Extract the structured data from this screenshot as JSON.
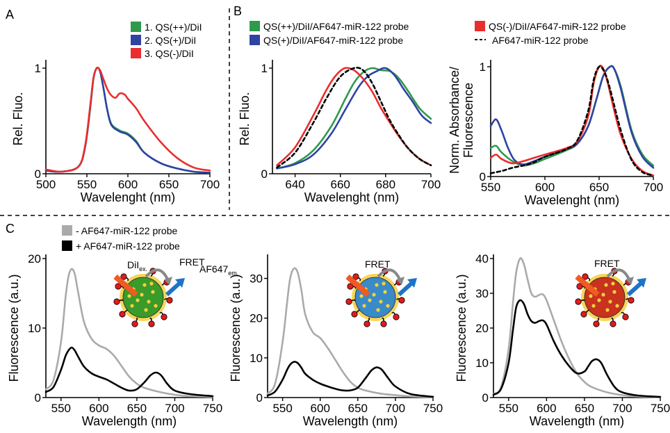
{
  "panel_labels": {
    "a": "A",
    "b": "B",
    "c": "C"
  },
  "colors": {
    "green": "#2e9a4c",
    "blue": "#2f43a3",
    "red": "#ea2d2d",
    "gray": "#aaaaaa",
    "black": "#000000",
    "arrow_orange": "#f05a23",
    "arrow_blue": "#1e73c8",
    "nanoparticle_green": "#3a9a2a",
    "nanoparticle_blue": "#3a8ac8",
    "nanoparticle_red": "#c8321e",
    "dye_red": "#e01b1b",
    "dye_yellow": "#f2d23c"
  },
  "legend_a": [
    {
      "label": "1. QS(++)/DiI",
      "color": "#2e9a4c"
    },
    {
      "label": "2. QS(+)/DiI",
      "color": "#2f43a3"
    },
    {
      "label": "3. QS(-)/DiI",
      "color": "#ea2d2d"
    }
  ],
  "legend_b": [
    {
      "label": "QS(++)/DiI/AF647-miR-122 probe",
      "color": "#2e9a4c",
      "style": "box"
    },
    {
      "label": "QS(+)/DiI/AF647-miR-122 probe",
      "color": "#2f43a3",
      "style": "box"
    },
    {
      "label": "QS(-)/DiI/AF647-miR-122 probe",
      "color": "#ea2d2d",
      "style": "box"
    },
    {
      "label": "AF647-miR-122 probe",
      "color": "#000000",
      "style": "dash"
    }
  ],
  "legend_c": [
    {
      "label": "- AF647-miR-122 probe",
      "color": "#aaaaaa"
    },
    {
      "label": "+ AF647-miR-122 probe",
      "color": "#000000"
    }
  ],
  "insets": {
    "dii_label": "DiI",
    "dii_sub": "ex.",
    "fret_label": "FRET",
    "af_label": "AF647",
    "af_sub": "em."
  },
  "chart_data": [
    {
      "id": "A",
      "type": "line",
      "xlabel": "Wavelenght (nm)",
      "ylabel": "Rel. Fluo.",
      "xlim": [
        500,
        700
      ],
      "ylim": [
        0,
        1
      ],
      "xticks": [
        "500",
        "550",
        "600",
        "650",
        "700"
      ],
      "yticks": [
        "0",
        "1"
      ],
      "series": [
        {
          "name": "1. QS(++)/DiI",
          "color": "#2e9a4c",
          "x": [
            500,
            520,
            540,
            548,
            554,
            558,
            562,
            566,
            570,
            575,
            580,
            590,
            600,
            610,
            620,
            640,
            660,
            680,
            700
          ],
          "y": [
            0.03,
            0.02,
            0.07,
            0.26,
            0.62,
            0.9,
            1.0,
            0.97,
            0.82,
            0.6,
            0.47,
            0.41,
            0.38,
            0.31,
            0.2,
            0.1,
            0.05,
            0.02,
            0.01
          ]
        },
        {
          "name": "2. QS(+)/DiI",
          "color": "#2f43a3",
          "x": [
            500,
            520,
            540,
            548,
            554,
            558,
            562,
            566,
            570,
            575,
            580,
            590,
            600,
            610,
            620,
            640,
            660,
            680,
            700
          ],
          "y": [
            0.03,
            0.02,
            0.07,
            0.26,
            0.62,
            0.9,
            1.0,
            0.97,
            0.82,
            0.6,
            0.46,
            0.4,
            0.37,
            0.3,
            0.2,
            0.1,
            0.05,
            0.02,
            0.01
          ]
        },
        {
          "name": "3. QS(-)/DiI",
          "color": "#ea2d2d",
          "x": [
            500,
            520,
            540,
            548,
            554,
            558,
            562,
            566,
            570,
            575,
            580,
            585,
            590,
            596,
            600,
            610,
            620,
            640,
            660,
            680,
            700
          ],
          "y": [
            0.04,
            0.02,
            0.07,
            0.27,
            0.64,
            0.9,
            1.0,
            0.98,
            0.9,
            0.8,
            0.74,
            0.72,
            0.76,
            0.75,
            0.71,
            0.62,
            0.5,
            0.3,
            0.15,
            0.06,
            0.03
          ]
        }
      ]
    },
    {
      "id": "B1",
      "type": "line",
      "xlabel": "Wavelenght (nm)",
      "ylabel": "Rel. Fluo.",
      "xlim": [
        630,
        700
      ],
      "ylim": [
        0,
        1
      ],
      "xticks": [
        "640",
        "660",
        "680",
        "700"
      ],
      "yticks": [
        "0",
        "1"
      ],
      "series": [
        {
          "name": "QS(++)/DiI/AF647-miR-122 probe",
          "color": "#2e9a4c",
          "dash": false,
          "x": [
            632,
            640,
            648,
            656,
            662,
            666,
            670,
            674,
            678,
            682,
            686,
            690,
            695,
            700
          ],
          "y": [
            0.05,
            0.1,
            0.22,
            0.45,
            0.7,
            0.86,
            0.96,
            1.0,
            0.98,
            0.97,
            0.9,
            0.78,
            0.62,
            0.52
          ]
        },
        {
          "name": "QS(+)/DiI/AF647-miR-122 probe",
          "color": "#2f43a3",
          "dash": false,
          "x": [
            632,
            640,
            648,
            656,
            662,
            668,
            672,
            676,
            680,
            684,
            688,
            692,
            696,
            700
          ],
          "y": [
            0.05,
            0.09,
            0.18,
            0.38,
            0.6,
            0.82,
            0.92,
            0.97,
            1.0,
            0.93,
            0.8,
            0.68,
            0.55,
            0.48
          ]
        },
        {
          "name": "QS(-)/DiI/AF647-miR-122 probe",
          "color": "#ea2d2d",
          "dash": false,
          "x": [
            632,
            640,
            648,
            654,
            658,
            662,
            666,
            670,
            674,
            678,
            682,
            686,
            690,
            695,
            700
          ],
          "y": [
            0.08,
            0.25,
            0.55,
            0.8,
            0.93,
            1.0,
            0.98,
            0.9,
            0.78,
            0.62,
            0.48,
            0.35,
            0.24,
            0.14,
            0.08
          ]
        },
        {
          "name": "AF647-miR-122 probe",
          "color": "#000000",
          "dash": true,
          "x": [
            632,
            640,
            648,
            654,
            660,
            666,
            670,
            674,
            678,
            682,
            686,
            690,
            695,
            700
          ],
          "y": [
            0.06,
            0.2,
            0.48,
            0.72,
            0.92,
            1.0,
            0.98,
            0.86,
            0.68,
            0.5,
            0.36,
            0.24,
            0.14,
            0.08
          ]
        }
      ]
    },
    {
      "id": "B2",
      "type": "line",
      "xlabel": "Wavelenght (nm)",
      "ylabel": "Norm. Absorbance/ Fluorescence",
      "ylabel_lines": [
        "Norm. Absorbance/",
        "Fluorescence"
      ],
      "xlim": [
        550,
        700
      ],
      "ylim": [
        0,
        1
      ],
      "xticks": [
        "550",
        "600",
        "650",
        "700"
      ],
      "yticks": [
        "0",
        "1"
      ],
      "series": [
        {
          "name": "QS(++)/DiI/AF647-miR-122 probe",
          "color": "#2e9a4c",
          "dash": false,
          "x": [
            550,
            555,
            560,
            570,
            580,
            590,
            600,
            620,
            630,
            640,
            648,
            654,
            660,
            664,
            670,
            680,
            690,
            700
          ],
          "y": [
            0.26,
            0.28,
            0.22,
            0.14,
            0.1,
            0.12,
            0.16,
            0.24,
            0.3,
            0.46,
            0.72,
            0.92,
            1.0,
            0.98,
            0.82,
            0.42,
            0.2,
            0.1
          ]
        },
        {
          "name": "QS(+)/DiI/AF647-miR-122 probe",
          "color": "#2f43a3",
          "dash": false,
          "x": [
            550,
            555,
            560,
            566,
            572,
            580,
            590,
            600,
            620,
            630,
            640,
            648,
            654,
            660,
            664,
            670,
            680,
            690,
            700
          ],
          "y": [
            0.46,
            0.52,
            0.42,
            0.26,
            0.15,
            0.11,
            0.14,
            0.18,
            0.25,
            0.3,
            0.46,
            0.72,
            0.92,
            1.0,
            0.98,
            0.8,
            0.4,
            0.18,
            0.08
          ]
        },
        {
          "name": "QS(-)/DiI/AF647-miR-122 probe",
          "color": "#ea2d2d",
          "dash": false,
          "x": [
            550,
            555,
            560,
            570,
            580,
            590,
            600,
            620,
            630,
            640,
            645,
            650,
            654,
            658,
            664,
            670,
            680,
            690,
            700
          ],
          "y": [
            0.17,
            0.2,
            0.16,
            0.12,
            0.14,
            0.17,
            0.2,
            0.26,
            0.32,
            0.55,
            0.85,
            1.0,
            0.98,
            0.85,
            0.6,
            0.38,
            0.16,
            0.05,
            0.01
          ]
        },
        {
          "name": "AF647-miR-122 probe",
          "color": "#000000",
          "dash": true,
          "x": [
            550,
            560,
            570,
            580,
            590,
            600,
            620,
            630,
            640,
            645,
            650,
            655,
            660,
            670,
            680,
            690,
            700
          ],
          "y": [
            0.03,
            0.05,
            0.08,
            0.1,
            0.13,
            0.18,
            0.25,
            0.33,
            0.6,
            0.88,
            1.0,
            0.95,
            0.8,
            0.42,
            0.15,
            0.04,
            0.01
          ]
        }
      ]
    },
    {
      "id": "C1",
      "type": "line",
      "xlabel": "Wavelength (nm)",
      "ylabel": "Fluorescence (a.u.)",
      "xlim": [
        530,
        750
      ],
      "ylim": [
        0,
        20
      ],
      "xticks": [
        "550",
        "600",
        "650",
        "700",
        "750"
      ],
      "yticks": [
        "0",
        "10",
        "20"
      ],
      "series": [
        {
          "name": "- AF647-miR-122 probe",
          "color": "#aaaaaa",
          "x": [
            530,
            540,
            550,
            556,
            560,
            564,
            568,
            572,
            580,
            590,
            600,
            610,
            620,
            630,
            640,
            650,
            660,
            680,
            700,
            720,
            750
          ],
          "y": [
            1.2,
            2.5,
            8.0,
            14.5,
            17.5,
            18.5,
            17.8,
            15.5,
            11.0,
            8.5,
            7.5,
            7.0,
            6.0,
            4.5,
            3.0,
            2.0,
            1.4,
            0.8,
            0.4,
            0.2,
            0.1
          ]
        },
        {
          "name": "+ AF647-miR-122 probe",
          "color": "#000000",
          "x": [
            530,
            540,
            550,
            556,
            560,
            564,
            568,
            572,
            580,
            590,
            600,
            610,
            620,
            630,
            640,
            650,
            660,
            668,
            675,
            682,
            690,
            700,
            720,
            750
          ],
          "y": [
            0.8,
            1.5,
            4.0,
            6.0,
            6.8,
            7.2,
            6.8,
            6.0,
            4.5,
            3.5,
            3.0,
            2.6,
            2.0,
            1.4,
            1.0,
            1.2,
            2.2,
            3.2,
            3.6,
            3.2,
            2.0,
            1.0,
            0.5,
            0.2
          ]
        }
      ]
    },
    {
      "id": "C2",
      "type": "line",
      "xlabel": "Wavelength (nm)",
      "ylabel": "Fluorescence (a.u.)",
      "xlim": [
        530,
        750
      ],
      "ylim": [
        0,
        35
      ],
      "xticks": [
        "550",
        "600",
        "650",
        "700",
        "750"
      ],
      "yticks": [
        "0",
        "10",
        "20",
        "30"
      ],
      "series": [
        {
          "name": "- AF647-miR-122 probe",
          "color": "#aaaaaa",
          "x": [
            530,
            540,
            550,
            556,
            560,
            565,
            570,
            575,
            580,
            590,
            600,
            610,
            620,
            630,
            640,
            650,
            660,
            680,
            700,
            720,
            750
          ],
          "y": [
            1.0,
            3.5,
            14.0,
            24.0,
            30.0,
            32.5,
            31.5,
            27.0,
            21.0,
            16.5,
            15.0,
            12.5,
            9.5,
            6.5,
            4.0,
            2.5,
            1.8,
            1.0,
            0.6,
            0.3,
            0.1
          ]
        },
        {
          "name": "+ AF647-miR-122 probe",
          "color": "#000000",
          "x": [
            530,
            540,
            550,
            556,
            560,
            565,
            570,
            575,
            580,
            590,
            600,
            610,
            620,
            630,
            640,
            650,
            660,
            668,
            675,
            682,
            690,
            700,
            720,
            750
          ],
          "y": [
            0.5,
            1.5,
            4.5,
            7.0,
            8.3,
            9.0,
            8.7,
            7.5,
            6.0,
            4.5,
            3.5,
            2.8,
            2.2,
            1.8,
            1.8,
            2.5,
            4.8,
            6.8,
            7.6,
            7.0,
            5.0,
            2.8,
            0.9,
            0.2
          ]
        }
      ]
    },
    {
      "id": "C3",
      "type": "line",
      "xlabel": "Wavelength (nm)",
      "ylabel": "Fluorescence (a.u.)",
      "xlim": [
        530,
        750
      ],
      "ylim": [
        0,
        40
      ],
      "xticks": [
        "550",
        "600",
        "650",
        "700",
        "750"
      ],
      "yticks": [
        "0",
        "10",
        "20",
        "30",
        "40"
      ],
      "series": [
        {
          "name": "- AF647-miR-122 probe",
          "color": "#aaaaaa",
          "x": [
            530,
            540,
            550,
            556,
            560,
            565,
            570,
            575,
            580,
            585,
            590,
            595,
            600,
            610,
            620,
            630,
            640,
            650,
            660,
            680,
            700,
            720,
            750
          ],
          "y": [
            1.0,
            3.0,
            14.0,
            28.0,
            36.0,
            40.0,
            38.5,
            34.0,
            30.0,
            29.0,
            29.5,
            29.7,
            28.0,
            22.0,
            16.0,
            11.0,
            7.0,
            4.5,
            3.0,
            1.5,
            0.7,
            0.3,
            0.1
          ]
        },
        {
          "name": "+ AF647-miR-122 probe",
          "color": "#000000",
          "x": [
            530,
            540,
            550,
            556,
            560,
            565,
            570,
            575,
            580,
            585,
            590,
            595,
            600,
            610,
            620,
            630,
            640,
            650,
            655,
            660,
            666,
            672,
            680,
            690,
            700,
            720,
            750
          ],
          "y": [
            0.8,
            2.5,
            10.0,
            20.0,
            26.0,
            28.0,
            27.0,
            24.0,
            22.0,
            21.5,
            22.0,
            22.2,
            21.0,
            16.0,
            12.0,
            9.0,
            7.0,
            7.5,
            9.0,
            10.5,
            11.0,
            10.0,
            6.5,
            3.0,
            1.5,
            0.6,
            0.2
          ]
        }
      ]
    }
  ]
}
